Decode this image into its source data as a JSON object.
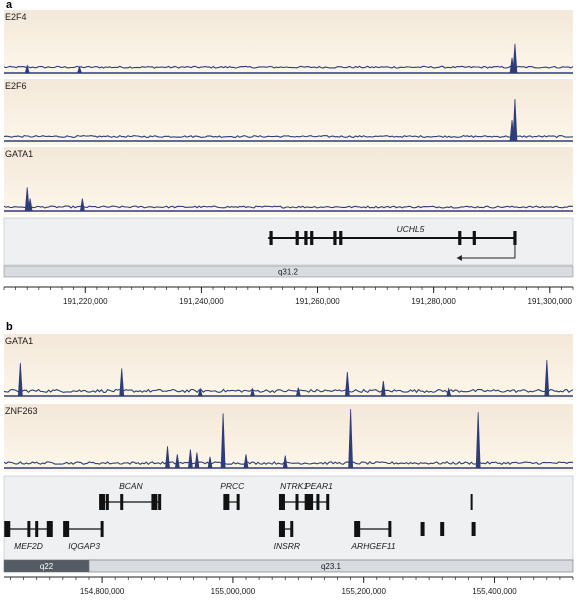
{
  "chart_data": [
    {
      "panel": "a",
      "type": "line",
      "xlim": [
        191206000,
        191304000
      ],
      "x_ticks": [
        {
          "value": 191220000,
          "label": "191,220,000"
        },
        {
          "value": 191240000,
          "label": "191,240,000"
        },
        {
          "value": 191260000,
          "label": "191,260,000"
        },
        {
          "value": 191280000,
          "label": "191,280,000"
        },
        {
          "value": 191300000,
          "label": "191,300,000"
        }
      ],
      "tracks": [
        {
          "name": "E2F4",
          "baseline": 0.08,
          "noise": 0.03,
          "peaks": [
            {
              "x": 191210000,
              "y": 0.12
            },
            {
              "x": 191219000,
              "y": 0.1
            },
            {
              "x": 191294000,
              "y": 0.48
            },
            {
              "x": 191293500,
              "y": 0.25
            }
          ]
        },
        {
          "name": "E2F6",
          "baseline": 0.06,
          "noise": 0.03,
          "peaks": [
            {
              "x": 191294000,
              "y": 0.7
            },
            {
              "x": 191293500,
              "y": 0.35
            }
          ]
        },
        {
          "name": "GATA1",
          "baseline": 0.05,
          "noise": 0.03,
          "peaks": [
            {
              "x": 191210000,
              "y": 0.38
            },
            {
              "x": 191210500,
              "y": 0.2
            },
            {
              "x": 191219500,
              "y": 0.2
            }
          ]
        }
      ],
      "genes": [
        {
          "name": "UCHL5",
          "start": 191251500,
          "end": 191294000,
          "strand": "-",
          "exons": [
            191252000,
            191256500,
            191258000,
            191259000,
            191263000,
            191264000,
            191284500,
            191287000,
            191294000
          ]
        }
      ],
      "band": {
        "label": "q31.2",
        "start": 191206000,
        "end": 191304000
      }
    },
    {
      "panel": "b",
      "type": "line",
      "xlim": [
        154650000,
        155520000
      ],
      "x_ticks": [
        {
          "value": 154800000,
          "label": "154,800,000"
        },
        {
          "value": 155000000,
          "label": "155,000,000"
        },
        {
          "value": 155200000,
          "label": "155,200,000"
        },
        {
          "value": 155400000,
          "label": "155,400,000"
        }
      ],
      "tracks": [
        {
          "name": "GATA1",
          "baseline": 0.06,
          "noise": 0.05,
          "peaks": [
            {
              "x": 154675000,
              "y": 0.55
            },
            {
              "x": 154830000,
              "y": 0.46
            },
            {
              "x": 154950000,
              "y": 0.12
            },
            {
              "x": 155100000,
              "y": 0.14
            },
            {
              "x": 155175000,
              "y": 0.4
            },
            {
              "x": 155030000,
              "y": 0.12
            },
            {
              "x": 155230000,
              "y": 0.25
            },
            {
              "x": 155330000,
              "y": 0.12
            },
            {
              "x": 155480000,
              "y": 0.6
            }
          ]
        },
        {
          "name": "ZNF263",
          "baseline": 0.06,
          "noise": 0.04,
          "peaks": [
            {
              "x": 154900000,
              "y": 0.35
            },
            {
              "x": 154915000,
              "y": 0.22
            },
            {
              "x": 154935000,
              "y": 0.3
            },
            {
              "x": 154945000,
              "y": 0.25
            },
            {
              "x": 154965000,
              "y": 0.18
            },
            {
              "x": 154985000,
              "y": 0.88
            },
            {
              "x": 155020000,
              "y": 0.22
            },
            {
              "x": 155080000,
              "y": 0.2
            },
            {
              "x": 155180000,
              "y": 0.95
            },
            {
              "x": 155375000,
              "y": 0.9
            }
          ]
        }
      ],
      "genes": [
        {
          "name": "BCAN",
          "row": 1,
          "exons": [
            154800000,
            154808000,
            154830000,
            154880000,
            154888000
          ]
        },
        {
          "name": "PRCC",
          "row": 1,
          "exons": [
            154990000,
            155008000
          ]
        },
        {
          "name": "NTRK1",
          "row": 1,
          "exons": [
            155075000,
            155098000,
            155112000
          ]
        },
        {
          "name": "PEAR1",
          "row": 1,
          "exons": [
            155118000,
            155130000,
            155145000
          ]
        },
        {
          "name": "MEF2D",
          "row": 2,
          "exons": [
            154655000,
            154688000,
            154700000,
            154720000
          ]
        },
        {
          "name": "IQGAP3",
          "row": 2,
          "exons": [
            154745000,
            154800000
          ]
        },
        {
          "name": "INSRR",
          "row": 2,
          "exons": [
            155075000,
            155090000
          ]
        },
        {
          "name": "ARHGEF11",
          "row": 2,
          "exons": [
            155190000,
            155240000
          ]
        }
      ],
      "bands": [
        {
          "label": "q22",
          "start": 154650000,
          "end": 154780000,
          "shade": "dark"
        },
        {
          "label": "q23.1",
          "start": 154780000,
          "end": 155520000,
          "shade": "light"
        }
      ]
    }
  ],
  "colors": {
    "signal": "#2e3d7a",
    "track_top": "#f3e8da",
    "track_bottom": "#fdf7ea",
    "gene_panel": "#eef0f2",
    "band_dark": "#555b63",
    "band_light": "#d8dbe0"
  }
}
